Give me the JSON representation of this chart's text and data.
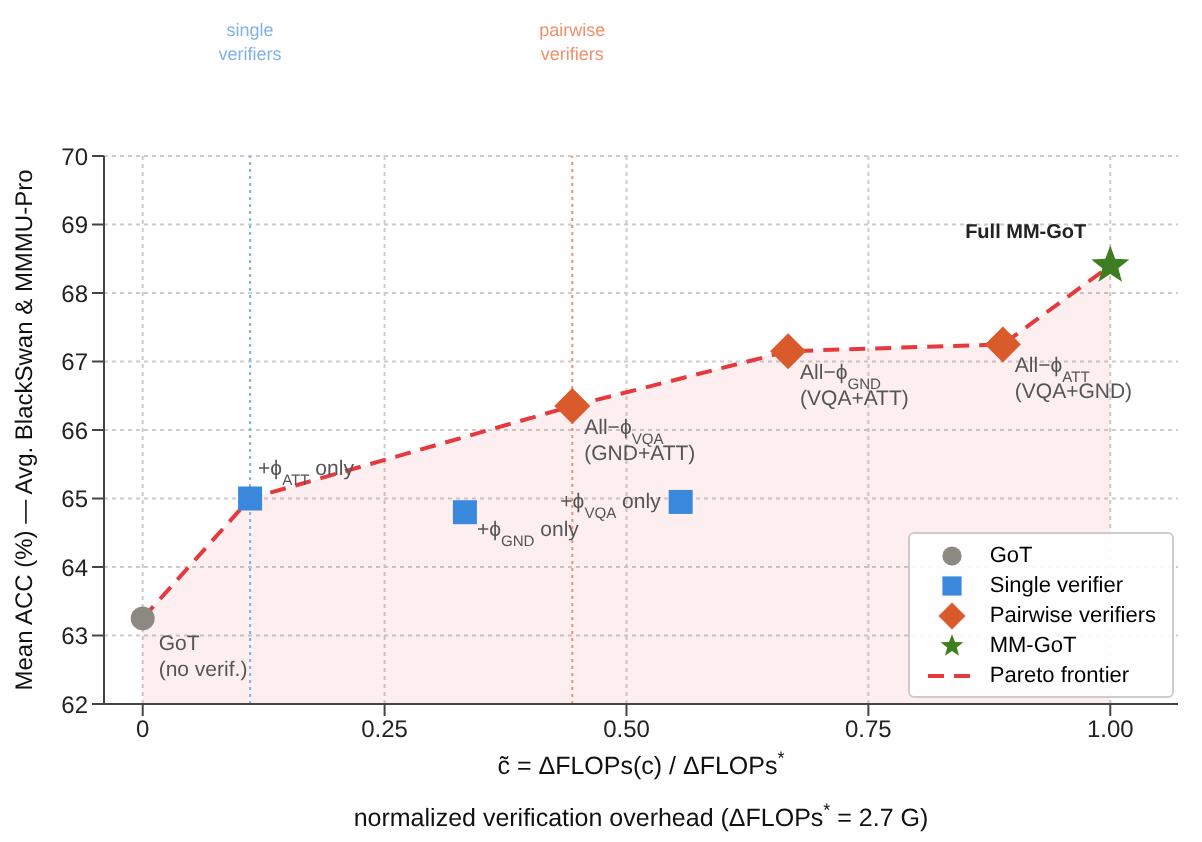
{
  "chart_data": {
    "type": "scatter",
    "xlabel": "c̃ = ΔFLOPs(c) / ΔFLOPs$^{*}$\nnormalized verification overhead  (ΔFLOPs$^{*}$ = 2.7 G)",
    "ylabel": "Mean ACC (%)  —  Avg. BlackSwan & MMMU-Pro",
    "xlim": [
      -0.04,
      1.07
    ],
    "xticks": [
      {
        "value": 0,
        "label": "0"
      },
      0.25,
      {
        "value": 0.5,
        "label": "0.50"
      },
      0.75,
      {
        "value": 1,
        "label": "1.00"
      }
    ],
    "ylim": [
      62,
      70
    ],
    "yticks": [
      62,
      63,
      64,
      65,
      66,
      67,
      68,
      69,
      70
    ],
    "grid": true,
    "legend": "bottom right",
    "series": [
      {
        "name": "GoT",
        "marker": "circle",
        "color": "#8a8a82",
        "x": [
          0
        ],
        "values": [
          63.25
        ]
      },
      {
        "name": "Single verifier",
        "marker": "square",
        "color": "#3a88dc",
        "x": [
          0.111,
          0.333,
          0.556
        ],
        "values": [
          65.0,
          64.8,
          64.95
        ]
      },
      {
        "name": "Pairwise verifiers",
        "marker": "diamond",
        "color": "#d95b2c",
        "x": [
          0.444,
          0.667,
          0.889
        ],
        "values": [
          66.35,
          67.15,
          67.25
        ]
      },
      {
        "name": "MM-GoT",
        "marker": "star",
        "color": "#3d7f20",
        "x": [
          1
        ],
        "values": [
          68.4
        ]
      },
      {
        "name": "Pareto frontier",
        "type": "area",
        "line_style": "dashed",
        "marker": "none",
        "color": "#e5393e",
        "x": [
          0,
          0.111,
          0.444,
          0.667,
          0.889,
          1
        ],
        "values": [
          63.25,
          65.0,
          66.35,
          67.15,
          67.25,
          68.4
        ]
      }
    ],
    "ref_lines": [
      {
        "axis": "x",
        "value": 0.111,
        "label": "single\nverifiers",
        "color": "#7fb2e5",
        "line_style": "dotted"
      },
      {
        "axis": "x",
        "value": 0.444,
        "label": "pairwise\nverifiers",
        "color": "#f0906a",
        "line_style": "dotted"
      }
    ],
    "annotations": [
      {
        "text": "GoT\n(no verif.)",
        "x": 0,
        "y": 63.25
      },
      {
        "text": "+ϕ$_{ATT}$ only",
        "x": 0.111,
        "y": 65.0
      },
      {
        "text": "+ϕ$_{GND}$ only",
        "x": 0.333,
        "y": 64.8
      },
      {
        "text": "+ϕ$_{VQA}$ only",
        "x": 0.556,
        "y": 64.95
      },
      {
        "text": "All−ϕ$_{VQA}$\n(GND+ATT)",
        "x": 0.444,
        "y": 66.35
      },
      {
        "text": "All−ϕ$_{GND}$\n(VQA+ATT)",
        "x": 0.667,
        "y": 67.15
      },
      {
        "text": "All−ϕ$_{ATT}$\n(VQA+GND)",
        "x": 0.889,
        "y": 67.25
      },
      {
        "text": "Full MM-GoT",
        "x": 1,
        "y": 68.4
      }
    ]
  }
}
